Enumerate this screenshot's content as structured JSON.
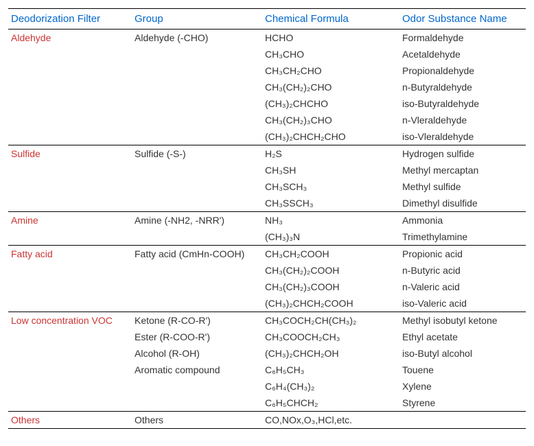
{
  "headers": {
    "filter": "Deodorization Filter",
    "group": "Group",
    "formula": "Chemical Formula",
    "name": "Odor Substance Name"
  },
  "rows": [
    {
      "section": true,
      "filter": "Aldehyde",
      "group": "Aldehyde (-CHO)",
      "formula": "HCHO",
      "name": "Formaldehyde"
    },
    {
      "section": false,
      "filter": "",
      "group": "",
      "formula": "CH₃CHO",
      "name": "Acetaldehyde"
    },
    {
      "section": false,
      "filter": "",
      "group": "",
      "formula": "CH₃CH₂CHO",
      "name": "Propionaldehyde"
    },
    {
      "section": false,
      "filter": "",
      "group": "",
      "formula": "CH₃(CH₂)₂CHO",
      "name": "n-Butyraldehyde"
    },
    {
      "section": false,
      "filter": "",
      "group": "",
      "formula": "(CH₃)₂CHCHO",
      "name": "iso-Butyraldehyde"
    },
    {
      "section": false,
      "filter": "",
      "group": "",
      "formula": "CH₃(CH₂)₃CHO",
      "name": "n-Vleraldehyde"
    },
    {
      "section": false,
      "filter": "",
      "group": "",
      "formula": "(CH₃)₂CHCH₂CHO",
      "name": "iso-Vleraldehyde"
    },
    {
      "section": true,
      "filter": "Sulfide",
      "group": "Sulfide (-S-)",
      "formula": "H₂S",
      "name": "Hydrogen sulfide"
    },
    {
      "section": false,
      "filter": "",
      "group": "",
      "formula": "CH₃SH",
      "name": "Methyl mercaptan"
    },
    {
      "section": false,
      "filter": "",
      "group": "",
      "formula": "CH₃SCH₃",
      "name": "Methyl sulfide"
    },
    {
      "section": false,
      "filter": "",
      "group": "",
      "formula": "CH₃SSCH₃",
      "name": "Dimethyl disulfide"
    },
    {
      "section": true,
      "filter": "Amine",
      "group": "Amine (-NH2, -NRR')",
      "formula": "NH₃",
      "name": "Ammonia"
    },
    {
      "section": false,
      "filter": "",
      "group": "",
      "formula": "(CH₃)₃N",
      "name": "Trimethylamine"
    },
    {
      "section": true,
      "filter": "Fatty acid",
      "group": "Fatty acid (CmHn-COOH)",
      "formula": "CH₃CH₂COOH",
      "name": "Propionic acid"
    },
    {
      "section": false,
      "filter": "",
      "group": "",
      "formula": "CH₃(CH₂)₂COOH",
      "name": "n-Butyric acid"
    },
    {
      "section": false,
      "filter": "",
      "group": "",
      "formula": "CH₃(CH₂)₃COOH",
      "name": "n-Valeric acid"
    },
    {
      "section": false,
      "filter": "",
      "group": "",
      "formula": "(CH₃)₂CHCH₂COOH",
      "name": "iso-Valeric acid"
    },
    {
      "section": true,
      "filter": "Low concentration VOC",
      "group": "Ketone (R-CO-R')",
      "formula": "CH₃COCH₂CH(CH₃)₂",
      "name": "Methyl isobutyl ketone"
    },
    {
      "section": false,
      "filter": "",
      "group": "Ester (R-COO-R')",
      "formula": "CH₃COOCH₂CH₃",
      "name": "Ethyl acetate"
    },
    {
      "section": false,
      "filter": "",
      "group": "Alcohol (R-OH)",
      "formula": "(CH₃)₂CHCH₂OH",
      "name": "iso-Butyl alcohol"
    },
    {
      "section": false,
      "filter": "",
      "group": "Aromatic compound",
      "formula": "C₆H₅CH₃",
      "name": "Touene"
    },
    {
      "section": false,
      "filter": "",
      "group": "",
      "formula": "C₆H₄(CH₃)₂",
      "name": "Xylene"
    },
    {
      "section": false,
      "filter": "",
      "group": "",
      "formula": "C₆H₅CHCH₂",
      "name": "Styrene"
    },
    {
      "section": true,
      "filter": "Others",
      "group": "Others",
      "formula": "CO,NOx,O₃,HCl,etc.",
      "name": ""
    }
  ]
}
